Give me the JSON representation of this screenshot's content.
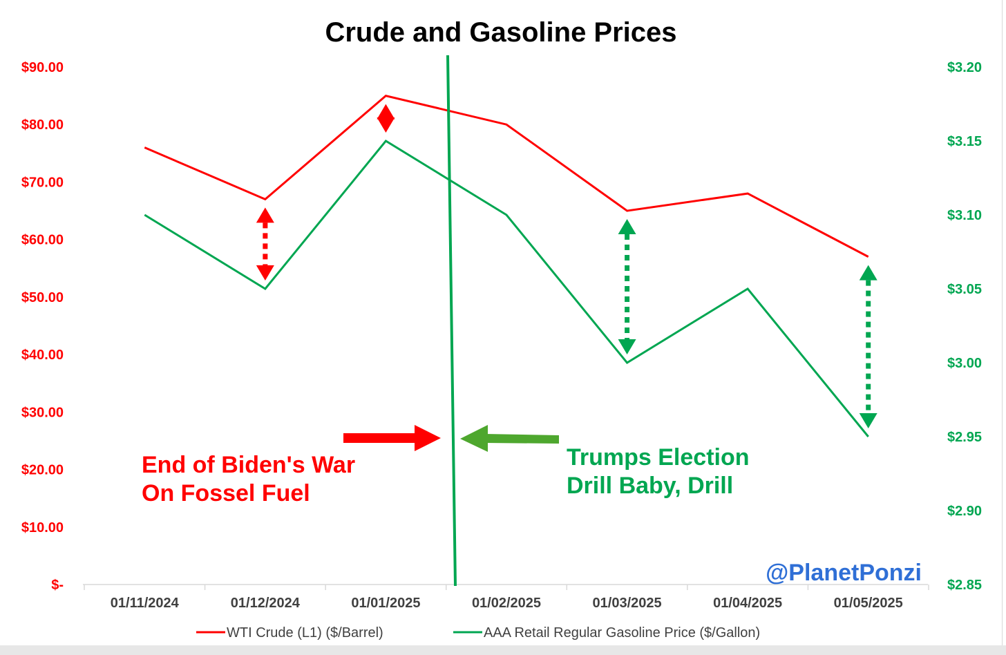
{
  "chart_data": {
    "type": "line",
    "title": "Crude and Gasoline Prices",
    "categories": [
      "01/11/2024",
      "01/12/2024",
      "01/01/2025",
      "01/02/2025",
      "01/03/2025",
      "01/04/2025",
      "01/05/2025"
    ],
    "y_left": {
      "ylim": [
        0,
        90
      ],
      "ticks": [
        "$-",
        "$10.00",
        "$20.00",
        "$30.00",
        "$40.00",
        "$50.00",
        "$60.00",
        "$70.00",
        "$80.00",
        "$90.00"
      ],
      "color": "#ff0000"
    },
    "y_right": {
      "ylim": [
        2.85,
        3.2
      ],
      "ticks": [
        "$2.85",
        "$2.90",
        "$2.95",
        "$3.00",
        "$3.05",
        "$3.10",
        "$3.15",
        "$3.20"
      ],
      "color": "#00a651"
    },
    "series": [
      {
        "name": "WTI Crude (L1) ($/Barrel)",
        "axis": "left",
        "color": "#ff0000",
        "values": [
          76,
          67,
          85,
          80,
          65,
          68,
          57
        ]
      },
      {
        "name": "AAA Retail Regular Gasoline Price ($/Gallon)",
        "axis": "right",
        "color": "#00a651",
        "values": [
          3.1,
          3.05,
          3.15,
          3.1,
          3.0,
          3.05,
          2.95
        ]
      }
    ],
    "grid": false,
    "legend_position": "bottom",
    "annotations": {
      "red_text": [
        "End of Biden's War",
        "On Fossel Fuel"
      ],
      "green_text": [
        "Trumps Election",
        "Drill Baby, Drill"
      ],
      "watermark": "@PlanetPonzi",
      "divider_color": "#00a651",
      "gap_arrows": [
        {
          "category": "01/12/2024",
          "color": "#ff0000"
        },
        {
          "category": "01/01/2025",
          "color": "#ff0000"
        },
        {
          "category": "01/03/2025",
          "color": "#00a651"
        },
        {
          "category": "01/05/2025",
          "color": "#00a651"
        }
      ]
    }
  }
}
